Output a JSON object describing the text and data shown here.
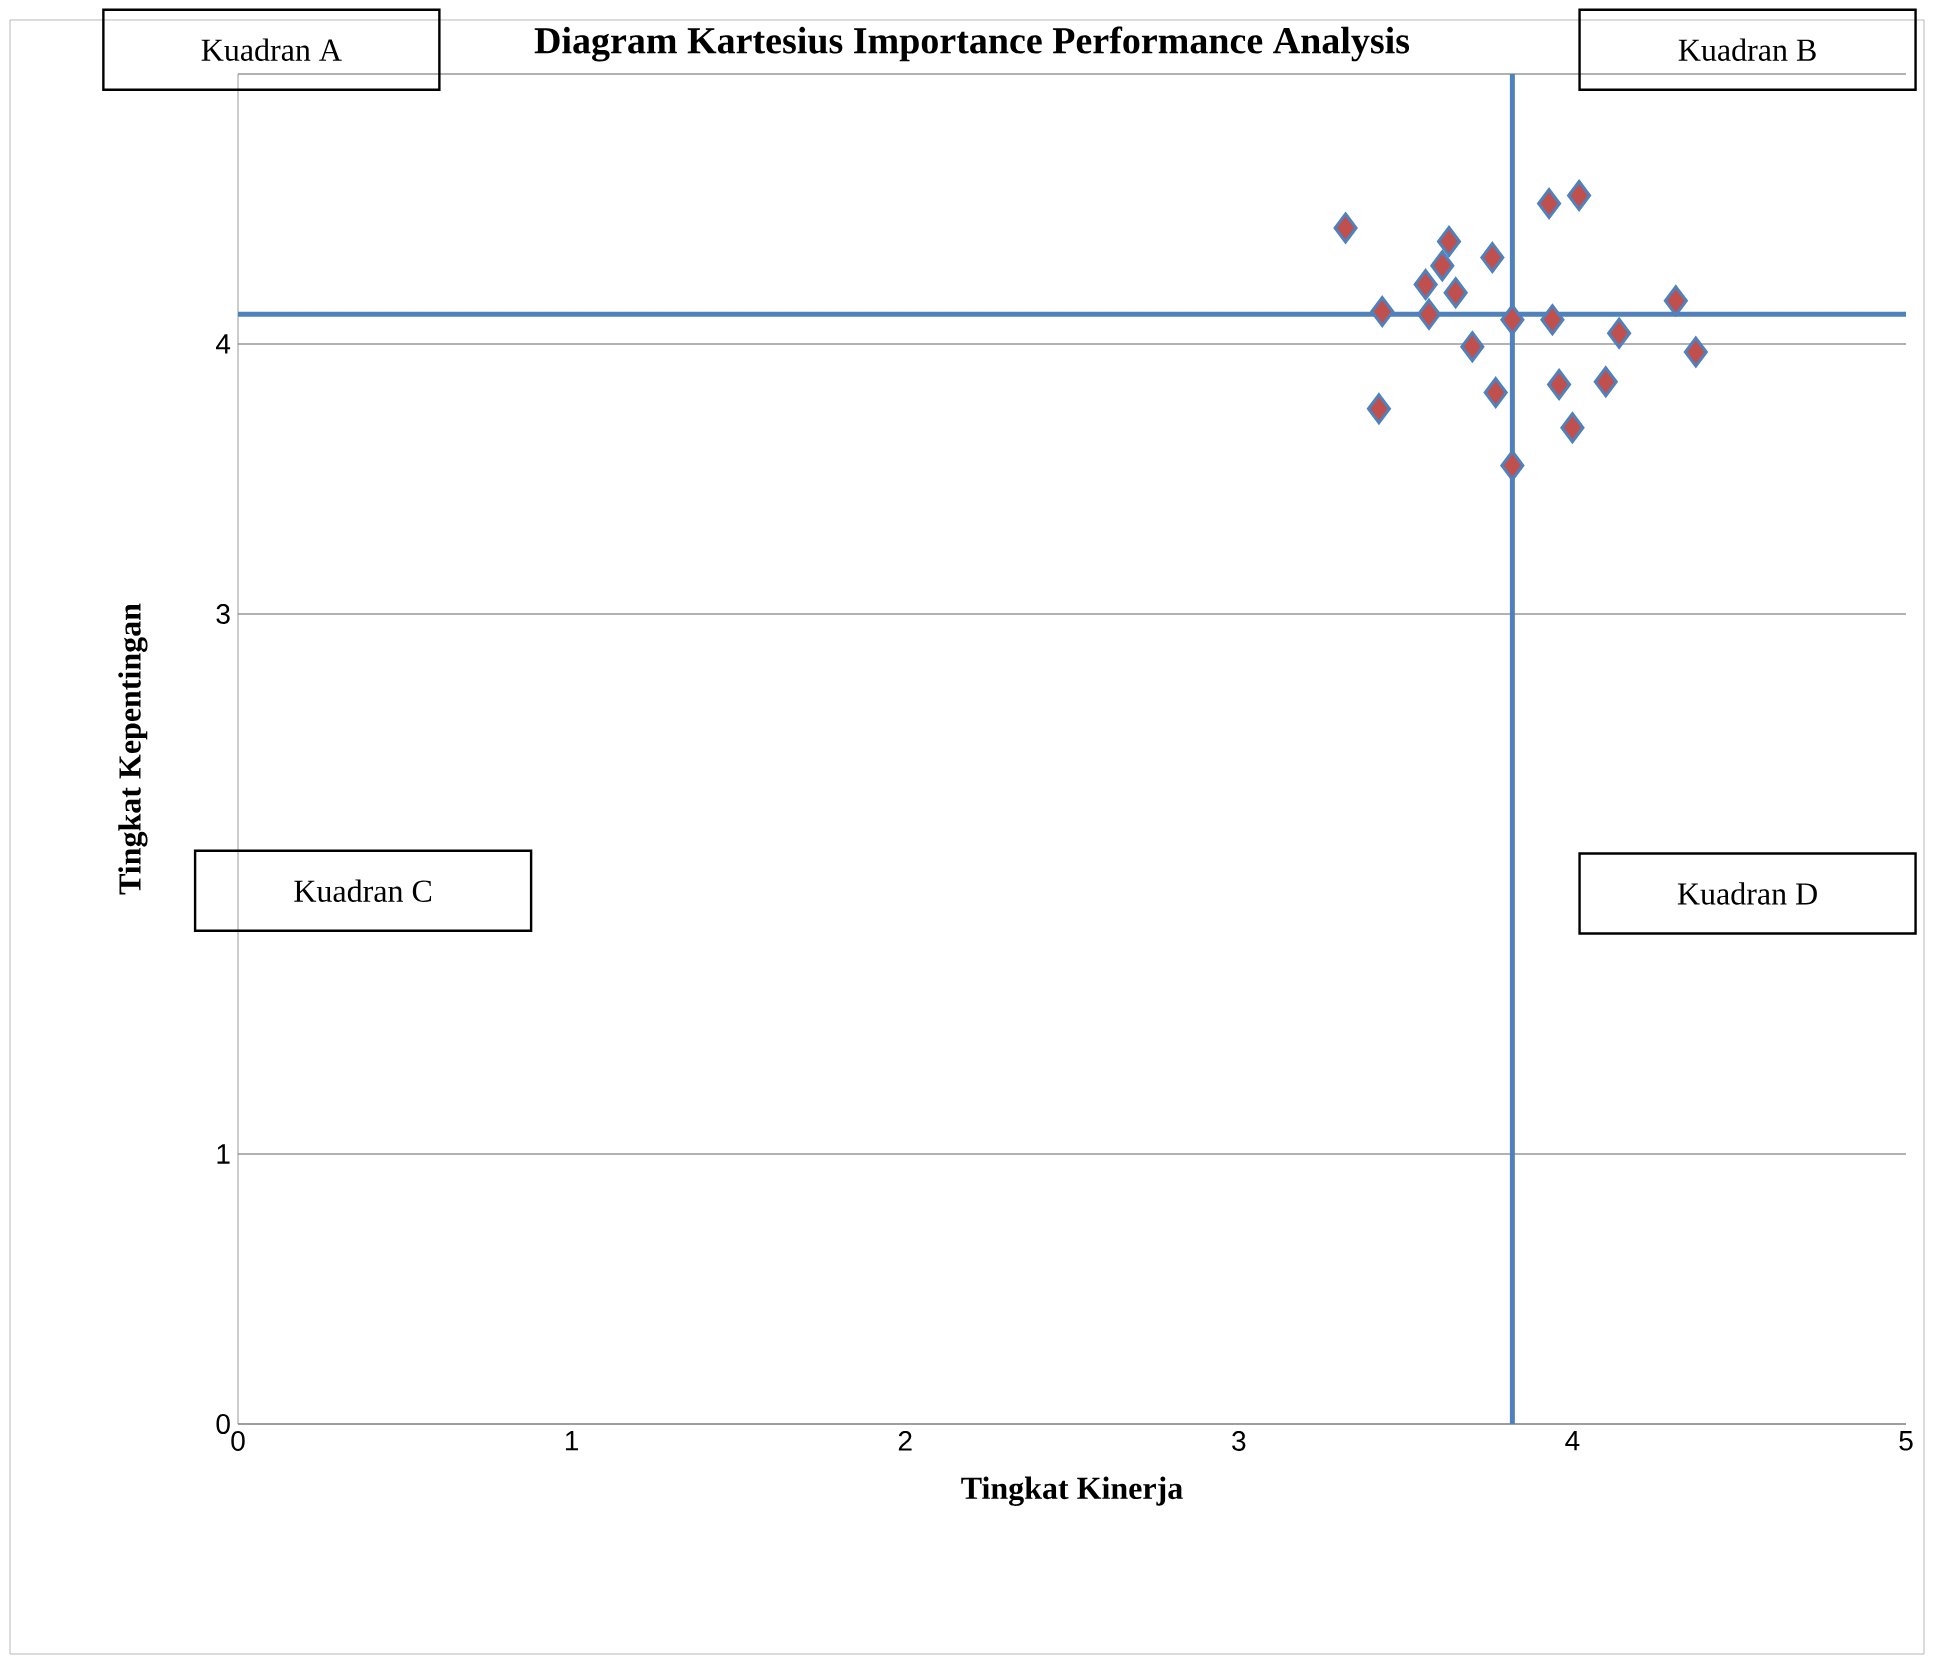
{
  "chart_data": {
    "type": "scatter",
    "title": "Diagram Kartesius Importance Performance Analysis",
    "xlabel": "Tingkat Kinerja",
    "ylabel": "Tingkat Kepentingan",
    "x": [
      3.32,
      3.93,
      4.02,
      3.63,
      3.76,
      3.61,
      3.56,
      3.65,
      3.43,
      3.57,
      3.82,
      3.94,
      4.31,
      4.14,
      3.7,
      4.37,
      3.96,
      4.1,
      3.77,
      3.42,
      4.0,
      3.82
    ],
    "values": [
      4.43,
      4.52,
      4.55,
      4.38,
      4.32,
      4.29,
      4.22,
      4.19,
      4.12,
      4.11,
      4.09,
      4.09,
      4.16,
      4.04,
      3.99,
      3.97,
      3.85,
      3.86,
      3.82,
      3.76,
      3.69,
      3.55
    ],
    "color": "#c0504d",
    "marker": "diamond",
    "grid": "y",
    "xlim": [
      0,
      5
    ],
    "ylim": [
      0,
      5
    ],
    "xticks": [
      0,
      1,
      2,
      3,
      4,
      5
    ],
    "yticks": [
      0,
      1,
      3,
      4,
      {
        "value": 5,
        "label": null
      }
    ],
    "ref_lines": [
      {
        "axis": "y",
        "value": 4.11,
        "color": "#4f81bd"
      },
      {
        "axis": "x",
        "value": 3.82,
        "color": "#4f81bd"
      }
    ],
    "annotations": [
      "Kuadran A",
      "Kuadran B",
      "Kuadran C",
      "Kuadran D"
    ]
  }
}
